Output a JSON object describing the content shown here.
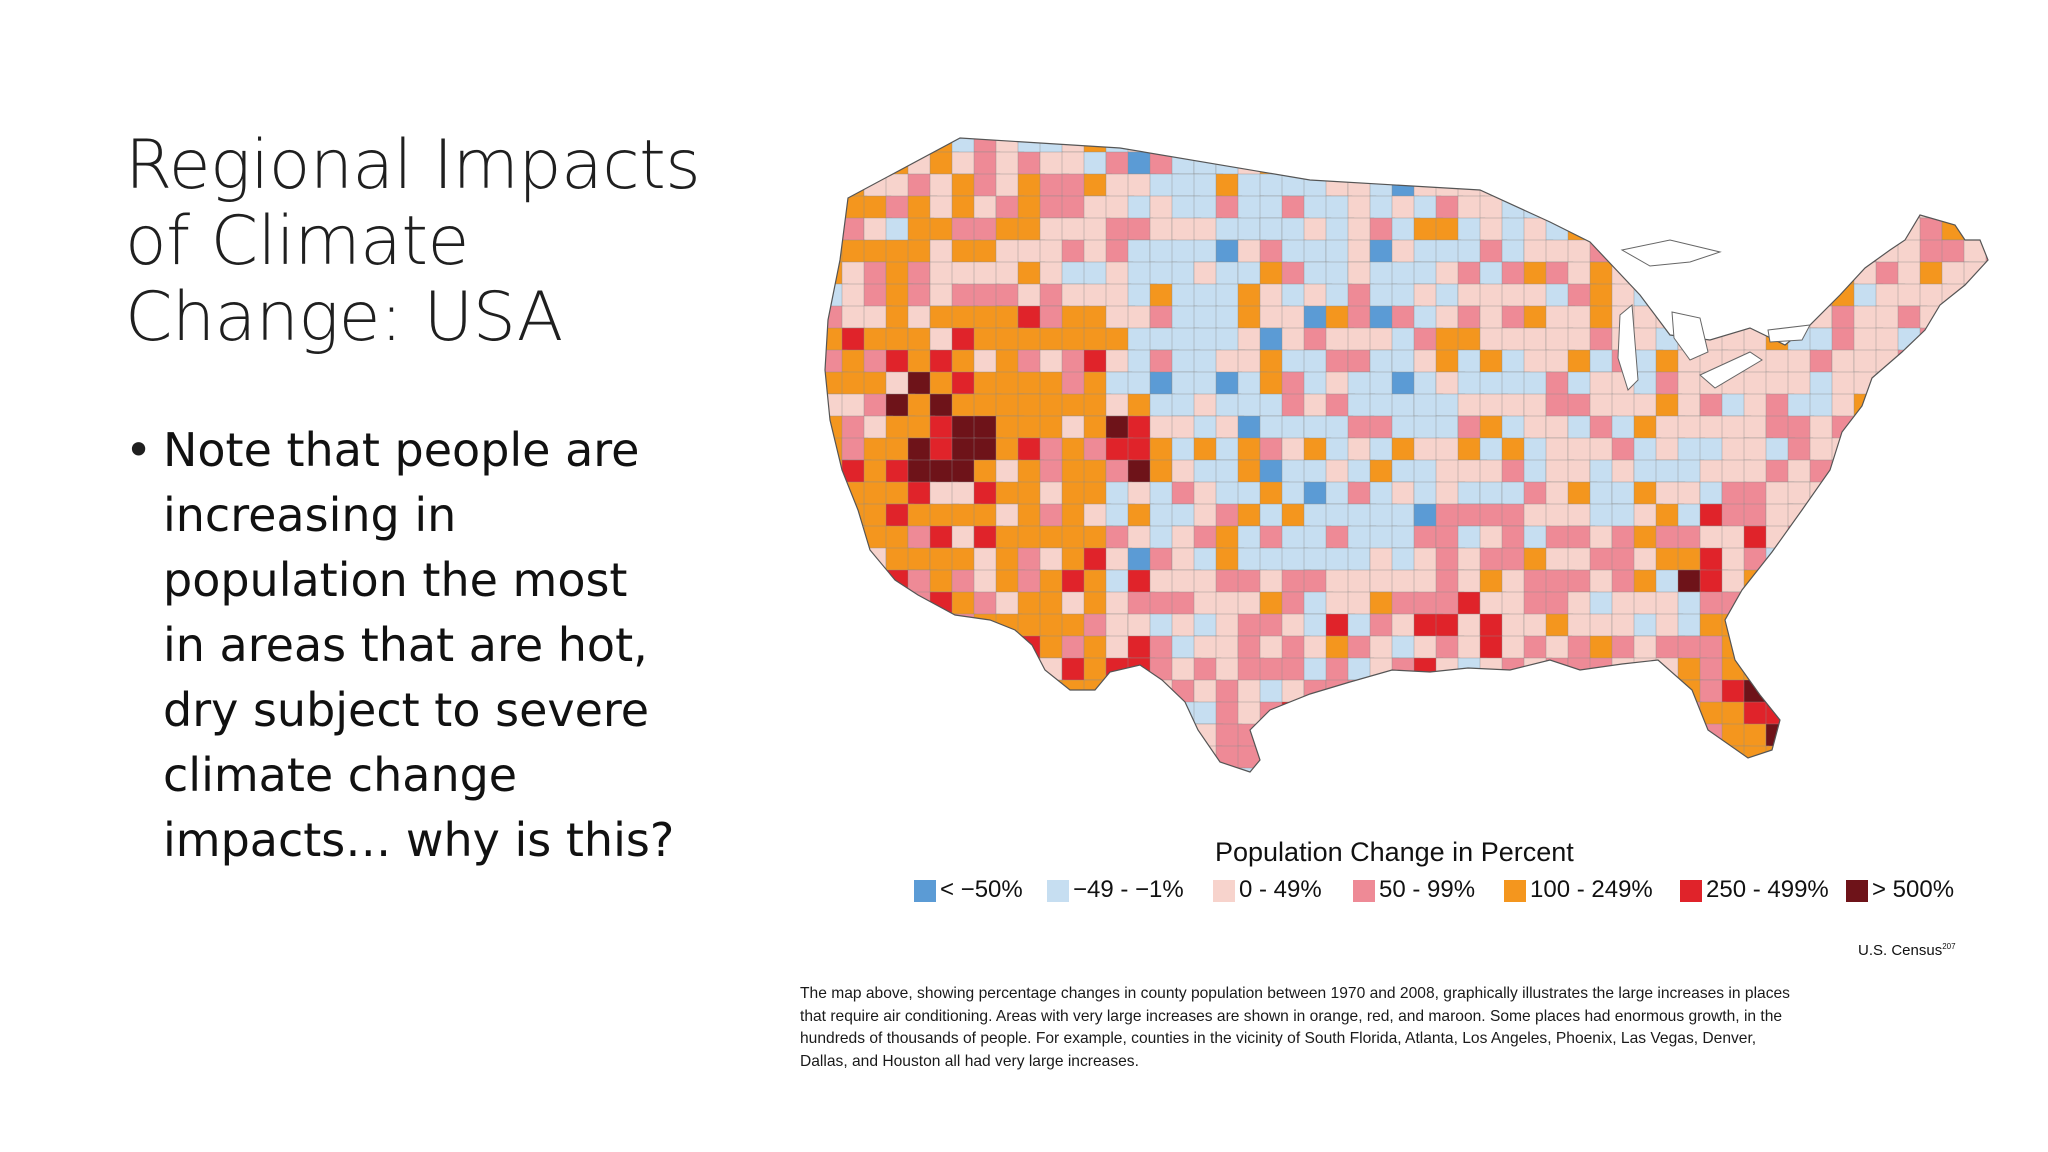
{
  "slide": {
    "title_lines": [
      "Regional Impacts",
      "of Climate",
      "Change: USA"
    ],
    "bullet_lines": [
      "Note that people are",
      "increasing in",
      "population the most",
      "in areas that are hot,",
      "dry subject to severe",
      "climate change",
      "impacts… why is this?"
    ]
  },
  "map": {
    "legend_title": "Population Change in Percent",
    "legend": [
      {
        "label": "< −50%",
        "color": "#5b9bd5"
      },
      {
        "label": "−49 - −1%",
        "color": "#c6def1"
      },
      {
        "label": "0 - 49%",
        "color": "#f7d3cc"
      },
      {
        "label": "50 - 99%",
        "color": "#ee8a96"
      },
      {
        "label": "100 - 249%",
        "color": "#f4961e"
      },
      {
        "label": "250 - 499%",
        "color": "#e0232a"
      },
      {
        "label": "> 500%",
        "color": "#6e1319"
      }
    ],
    "source": "U.S. Census",
    "source_note": "207",
    "caption_lines": [
      "The map above, showing percentage changes in county population between 1970 and 2008, graphically illustrates the large increases in places",
      "that require air conditioning.  Areas with very large increases are shown in orange, red, and maroon. Some places had enormous growth, in the",
      "hundreds of thousands of people. For example, counties in the vicinity of South Florida, Atlanta, Los Angeles, Phoenix, Las Vegas, Denver,",
      "Dallas, and Houston all had very large increases."
    ]
  }
}
